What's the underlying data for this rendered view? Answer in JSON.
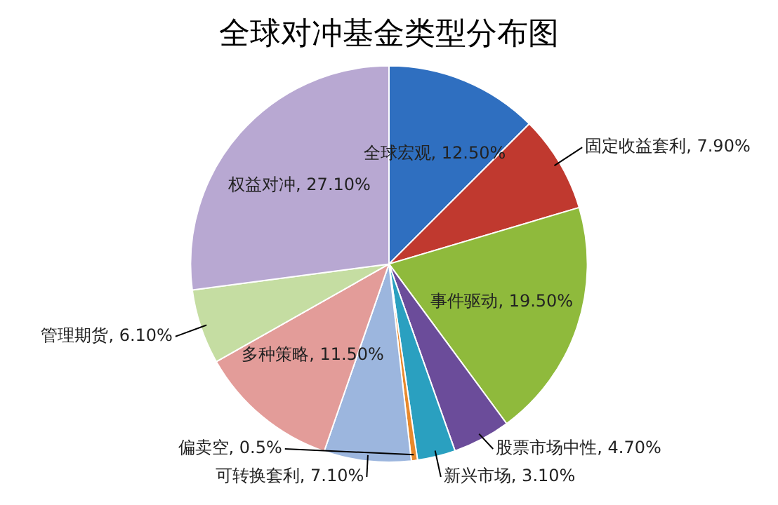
{
  "chart_data": {
    "type": "pie",
    "title": "全球对冲基金类型分布图",
    "categories": [
      "全球宏观",
      "固定收益套利",
      "事件驱动",
      "股票市场中性",
      "新兴市场",
      "偏卖空",
      "可转换套利",
      "多种策略",
      "管理期货",
      "权益对冲"
    ],
    "values": [
      12.5,
      7.9,
      19.5,
      4.7,
      3.1,
      0.5,
      7.1,
      11.5,
      6.1,
      27.1
    ],
    "value_labels": [
      "12.50%",
      "7.90%",
      "19.50%",
      "4.70%",
      "3.10%",
      "0.5%",
      "7.10%",
      "11.50%",
      "6.10%",
      "27.10%"
    ],
    "colors": [
      "#2f6fc0",
      "#c0392f",
      "#8fba3c",
      "#6b4c9a",
      "#2aa0c0",
      "#e8892c",
      "#9cb6de",
      "#e39c99",
      "#c5dda2",
      "#b8a8d2"
    ],
    "legend": false
  }
}
